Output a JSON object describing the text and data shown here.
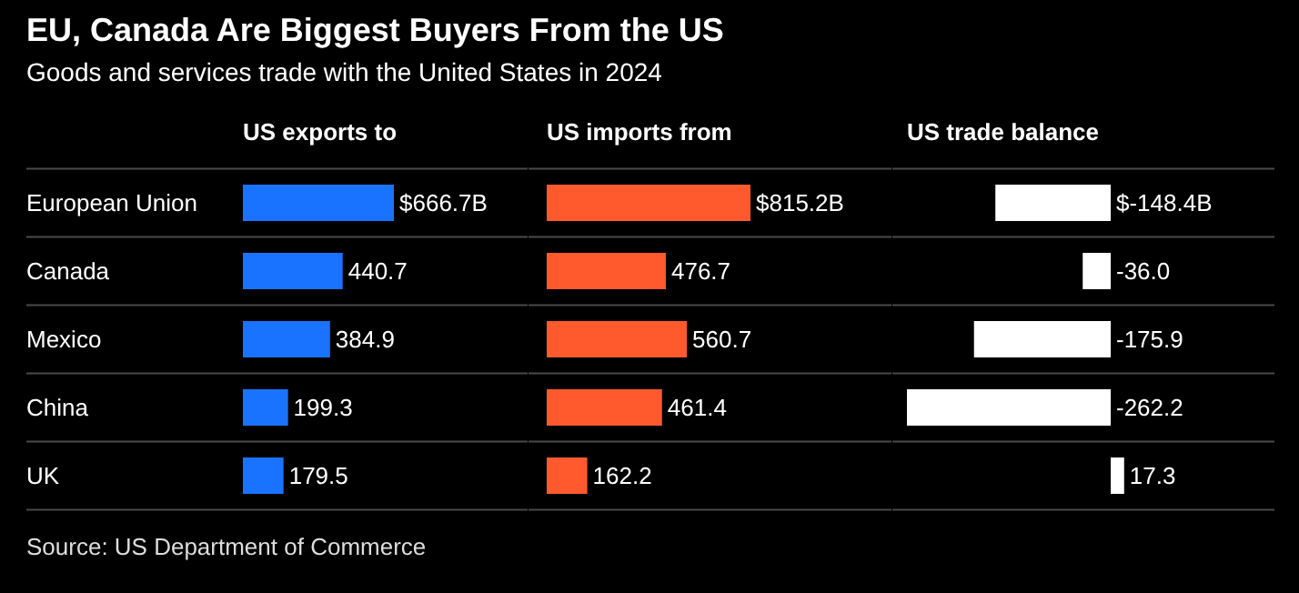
{
  "chart_data": [
    {
      "type": "other",
      "title": "EU, Canada Are Biggest Buyers From the US",
      "subtitle": "Goods and services trade with the United States in 2024",
      "annotations": [
        "Source: US Department of Commerce"
      ]
    },
    {
      "type": "bar",
      "orientation": "horizontal",
      "title": "US exports to",
      "tick_labels": "y",
      "categories": [
        "European Union",
        "Canada",
        "Mexico",
        "China",
        "UK"
      ],
      "color": "#1a73ff",
      "values": [
        666.7,
        440.7,
        384.9,
        199.3,
        179.5
      ],
      "value_labels": [
        "$666.7B",
        "440.7",
        "384.9",
        "199.3",
        "179.5"
      ]
    },
    {
      "type": "bar",
      "orientation": "horizontal",
      "title": "US imports from",
      "color": "#ff5a2e",
      "values": [
        815.2,
        476.7,
        560.7,
        461.4,
        162.2
      ],
      "value_labels": [
        "$815.2B",
        "476.7",
        "560.7",
        "461.4",
        "162.2"
      ]
    },
    {
      "type": "bar",
      "orientation": "horizontal",
      "title": "US trade balance",
      "color": "#ffffff",
      "values": [
        -148.4,
        -36.0,
        -175.9,
        -262.2,
        17.3
      ],
      "value_labels": [
        "$-148.4B",
        "-36.0",
        "-175.9",
        "-262.2",
        "17.3"
      ]
    }
  ]
}
